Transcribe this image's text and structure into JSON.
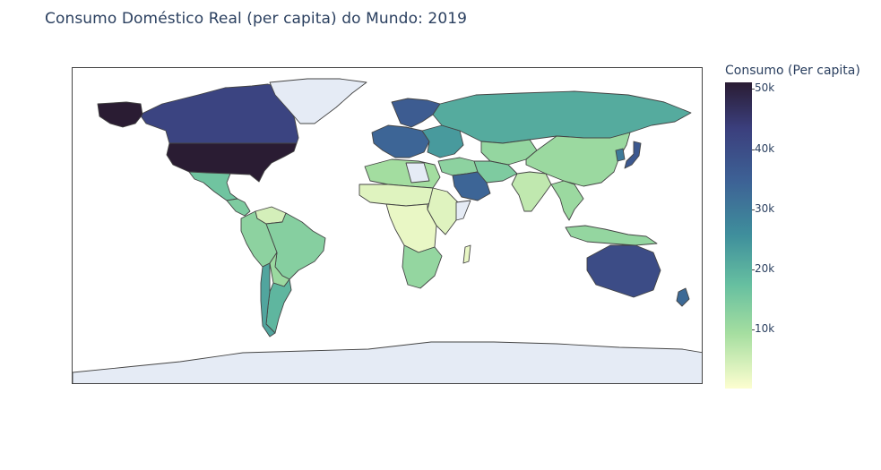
{
  "title": "Consumo Doméstico Real (per capita) do Mundo: 2019",
  "colorbar": {
    "title": "Consumo (Per capita)",
    "ticks": [
      "50k",
      "40k",
      "30k",
      "20k",
      "10k"
    ],
    "tick_values": [
      50000,
      40000,
      30000,
      20000,
      10000
    ],
    "range": [
      0,
      52000
    ],
    "colorscale": [
      "#fdfed0",
      "#a5dea0",
      "#66bfa0",
      "#3f8f9c",
      "#3d6195",
      "#3b3f7d",
      "#2a1c33"
    ]
  },
  "no_data_color": "#e5ebf5",
  "regions": [
    {
      "name": "United States",
      "value": 52000
    },
    {
      "name": "Canada",
      "value": 42000
    },
    {
      "name": "Alaska",
      "value": 52000
    },
    {
      "name": "Greenland",
      "value": null
    },
    {
      "name": "Mexico",
      "value": 16000
    },
    {
      "name": "Central America",
      "value": 14000
    },
    {
      "name": "Colombia/Ecuador/Peru",
      "value": 12000
    },
    {
      "name": "Venezuela",
      "value": 4000
    },
    {
      "name": "Brazil",
      "value": 13000
    },
    {
      "name": "Bolivia/Paraguay",
      "value": 10000
    },
    {
      "name": "Argentina",
      "value": 19000
    },
    {
      "name": "Chile",
      "value": 22000
    },
    {
      "name": "Western Europe",
      "value": 34000
    },
    {
      "name": "Scandinavia",
      "value": 36000
    },
    {
      "name": "Eastern Europe",
      "value": 24000
    },
    {
      "name": "Russia",
      "value": 21000
    },
    {
      "name": "Kazakhstan/Central Asia",
      "value": 11000
    },
    {
      "name": "Mongolia/China",
      "value": 10000
    },
    {
      "name": "Japan",
      "value": 37000
    },
    {
      "name": "Korea",
      "value": 30000
    },
    {
      "name": "Middle East",
      "value": 12000
    },
    {
      "name": "Saudi Arabia/Gulf",
      "value": 34000
    },
    {
      "name": "Iran",
      "value": 14000
    },
    {
      "name": "India",
      "value": 6000
    },
    {
      "name": "Southeast Asia",
      "value": 10000
    },
    {
      "name": "Indonesia",
      "value": 11000
    },
    {
      "name": "North Africa",
      "value": 9000
    },
    {
      "name": "Libya",
      "value": null
    },
    {
      "name": "Sahel/West Africa",
      "value": 3000
    },
    {
      "name": "Central Africa",
      "value": 2000
    },
    {
      "name": "East Africa",
      "value": 3000
    },
    {
      "name": "Somalia",
      "value": null
    },
    {
      "name": "Southern Africa",
      "value": 11000
    },
    {
      "name": "Madagascar",
      "value": 2000
    },
    {
      "name": "Australia",
      "value": 40000
    },
    {
      "name": "New Zealand",
      "value": 33000
    },
    {
      "name": "Antarctica",
      "value": null
    }
  ]
}
